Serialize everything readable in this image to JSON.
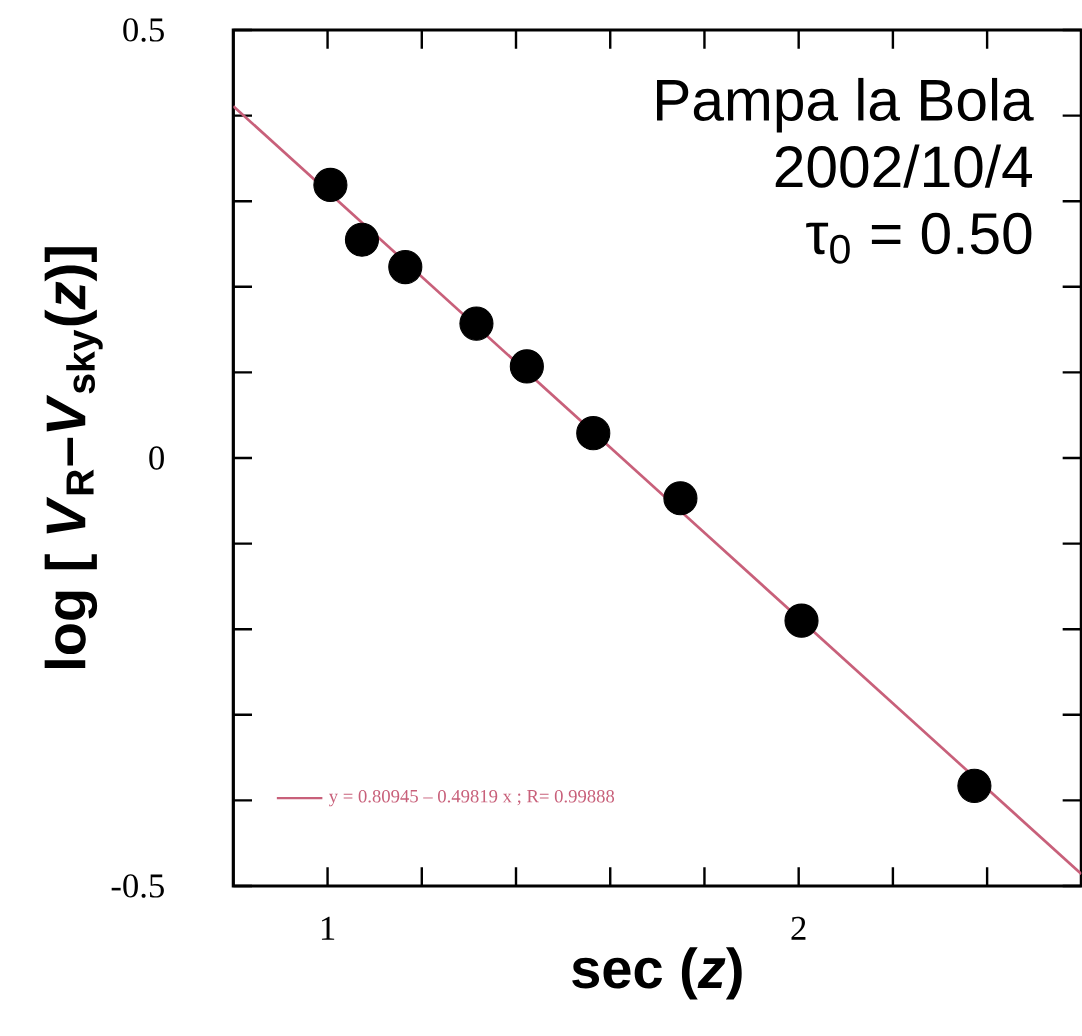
{
  "chart_data": {
    "type": "scatter",
    "xlabel": "sec (*z*)",
    "ylabel": "log [ *V*$_{R}$–*V*$_{sky}$(*z*)]",
    "annotations": [
      "Pampa la Bola",
      "2002/10/4",
      "τ$_{0}$ = 0.50"
    ],
    "series": [
      {
        "color": "#000000",
        "x": [
          1.006,
          1.073,
          1.165,
          1.316,
          1.423,
          1.564,
          1.749,
          2.006,
          2.373
        ],
        "values": [
          0.319,
          0.255,
          0.223,
          0.157,
          0.107,
          0.029,
          -0.047,
          -0.19,
          -0.383
        ]
      },
      {
        "type": "line",
        "name": "y = 0.80945 – 0.49819 x ;  R= 0.99888",
        "color": "#c8607a",
        "marker": "none",
        "x": [
          0.8,
          2.6
        ],
        "values": [
          0.411,
          -0.486
        ]
      }
    ],
    "xlim": [
      0.8,
      2.6
    ],
    "ylim": [
      -0.5,
      0.5
    ],
    "xticks": [
      1,
      {
        "value": 1.2,
        "label": null
      },
      {
        "value": 1.4,
        "label": null
      },
      {
        "value": 1.6,
        "label": null
      },
      {
        "value": 1.8,
        "label": null
      },
      2,
      {
        "value": 2.2,
        "label": null
      },
      {
        "value": 2.4,
        "label": null
      }
    ],
    "yticks": [
      -0.5,
      {
        "value": -0.4,
        "label": null
      },
      {
        "value": -0.3,
        "label": null
      },
      {
        "value": -0.2,
        "label": null
      },
      {
        "value": -0.1,
        "label": null
      },
      0,
      {
        "value": 0.1,
        "label": null
      },
      {
        "value": 0.2,
        "label": null
      },
      {
        "value": 0.3,
        "label": null
      },
      {
        "value": 0.4,
        "label": null
      },
      0.5
    ],
    "legend": "bottom left",
    "marker": "circle"
  }
}
